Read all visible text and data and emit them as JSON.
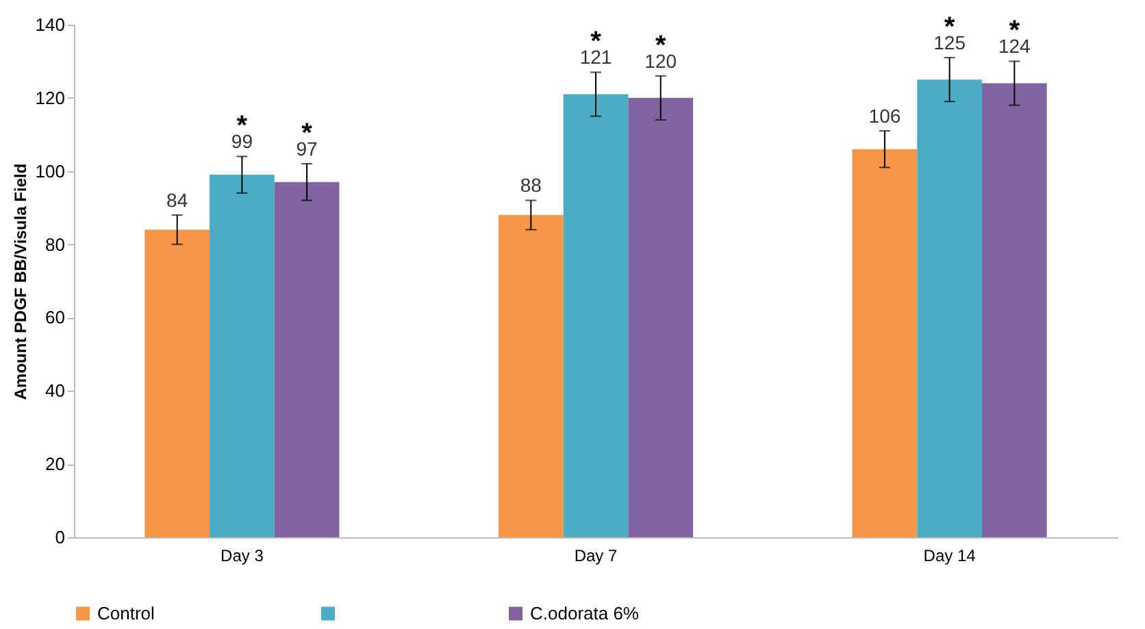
{
  "chart_data": {
    "type": "bar",
    "ylabel": "Amount PDGF BB/Visula  Field",
    "categories": [
      "Day 3",
      "Day 7",
      "Day 14"
    ],
    "series": [
      {
        "name": "Control",
        "color": "#f79646",
        "values": [
          84,
          88,
          106
        ],
        "errors": [
          4,
          4,
          5
        ]
      },
      {
        "name": null,
        "color": "#4bacc6",
        "values": [
          99,
          121,
          125
        ],
        "errors": [
          5,
          6,
          6
        ]
      },
      {
        "name": "C.odorata 6%",
        "color": "#8064a2",
        "values": [
          97,
          120,
          124
        ],
        "errors": [
          5,
          6,
          6
        ]
      }
    ],
    "ylim": [
      0,
      140
    ],
    "yticks": [
      0,
      20,
      40,
      60,
      80,
      100,
      120,
      140
    ],
    "data_labels": true,
    "grid": false,
    "legend": "bottom",
    "annotations": [
      "*",
      "*",
      "*",
      "*",
      "*",
      "*"
    ]
  }
}
